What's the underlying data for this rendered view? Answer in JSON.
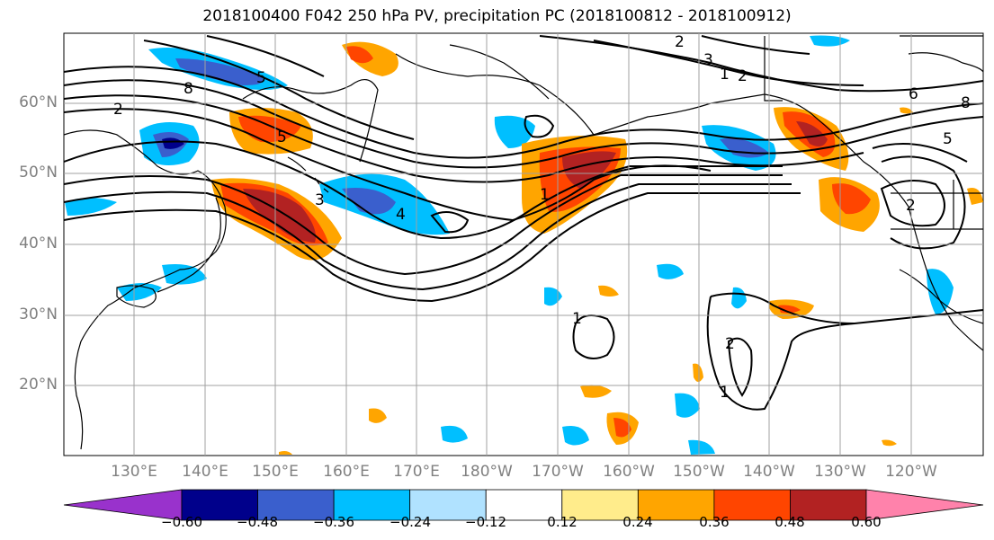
{
  "title": "2018100400 F042 250 hPa PV, precipitation PC (2018100812 - 2018100912)",
  "lat_labels": [
    "60°N",
    "50°N",
    "40°N",
    "30°N",
    "20°N"
  ],
  "lon_labels": [
    "130°E",
    "140°E",
    "150°E",
    "160°E",
    "170°E",
    "180°W",
    "170°W",
    "160°W",
    "150°W",
    "140°W",
    "130°W",
    "120°W"
  ],
  "colorbar": {
    "colors": [
      "#9932CC",
      "#00008B",
      "#3A5FCD",
      "#00BFFF",
      "#B0E2FF",
      "#FFFFFF",
      "#FFEC8B",
      "#FFA500",
      "#FF4500",
      "#B22222",
      "#FF82AB"
    ],
    "tick_labels": [
      "−0.60",
      "−0.48",
      "−0.36",
      "−0.24",
      "−0.12",
      "0.12",
      "0.24",
      "0.36",
      "0.48",
      "0.60"
    ]
  },
  "contour_labels": [
    "2",
    "8",
    "5",
    "3",
    "4",
    "1",
    "2",
    "5",
    "6",
    "8",
    "1",
    "2",
    "1",
    "2",
    "5",
    "3",
    "1",
    "2"
  ],
  "colors": {
    "grid": "#a0a0a0",
    "coast": "#000000",
    "contour": "#000000"
  }
}
